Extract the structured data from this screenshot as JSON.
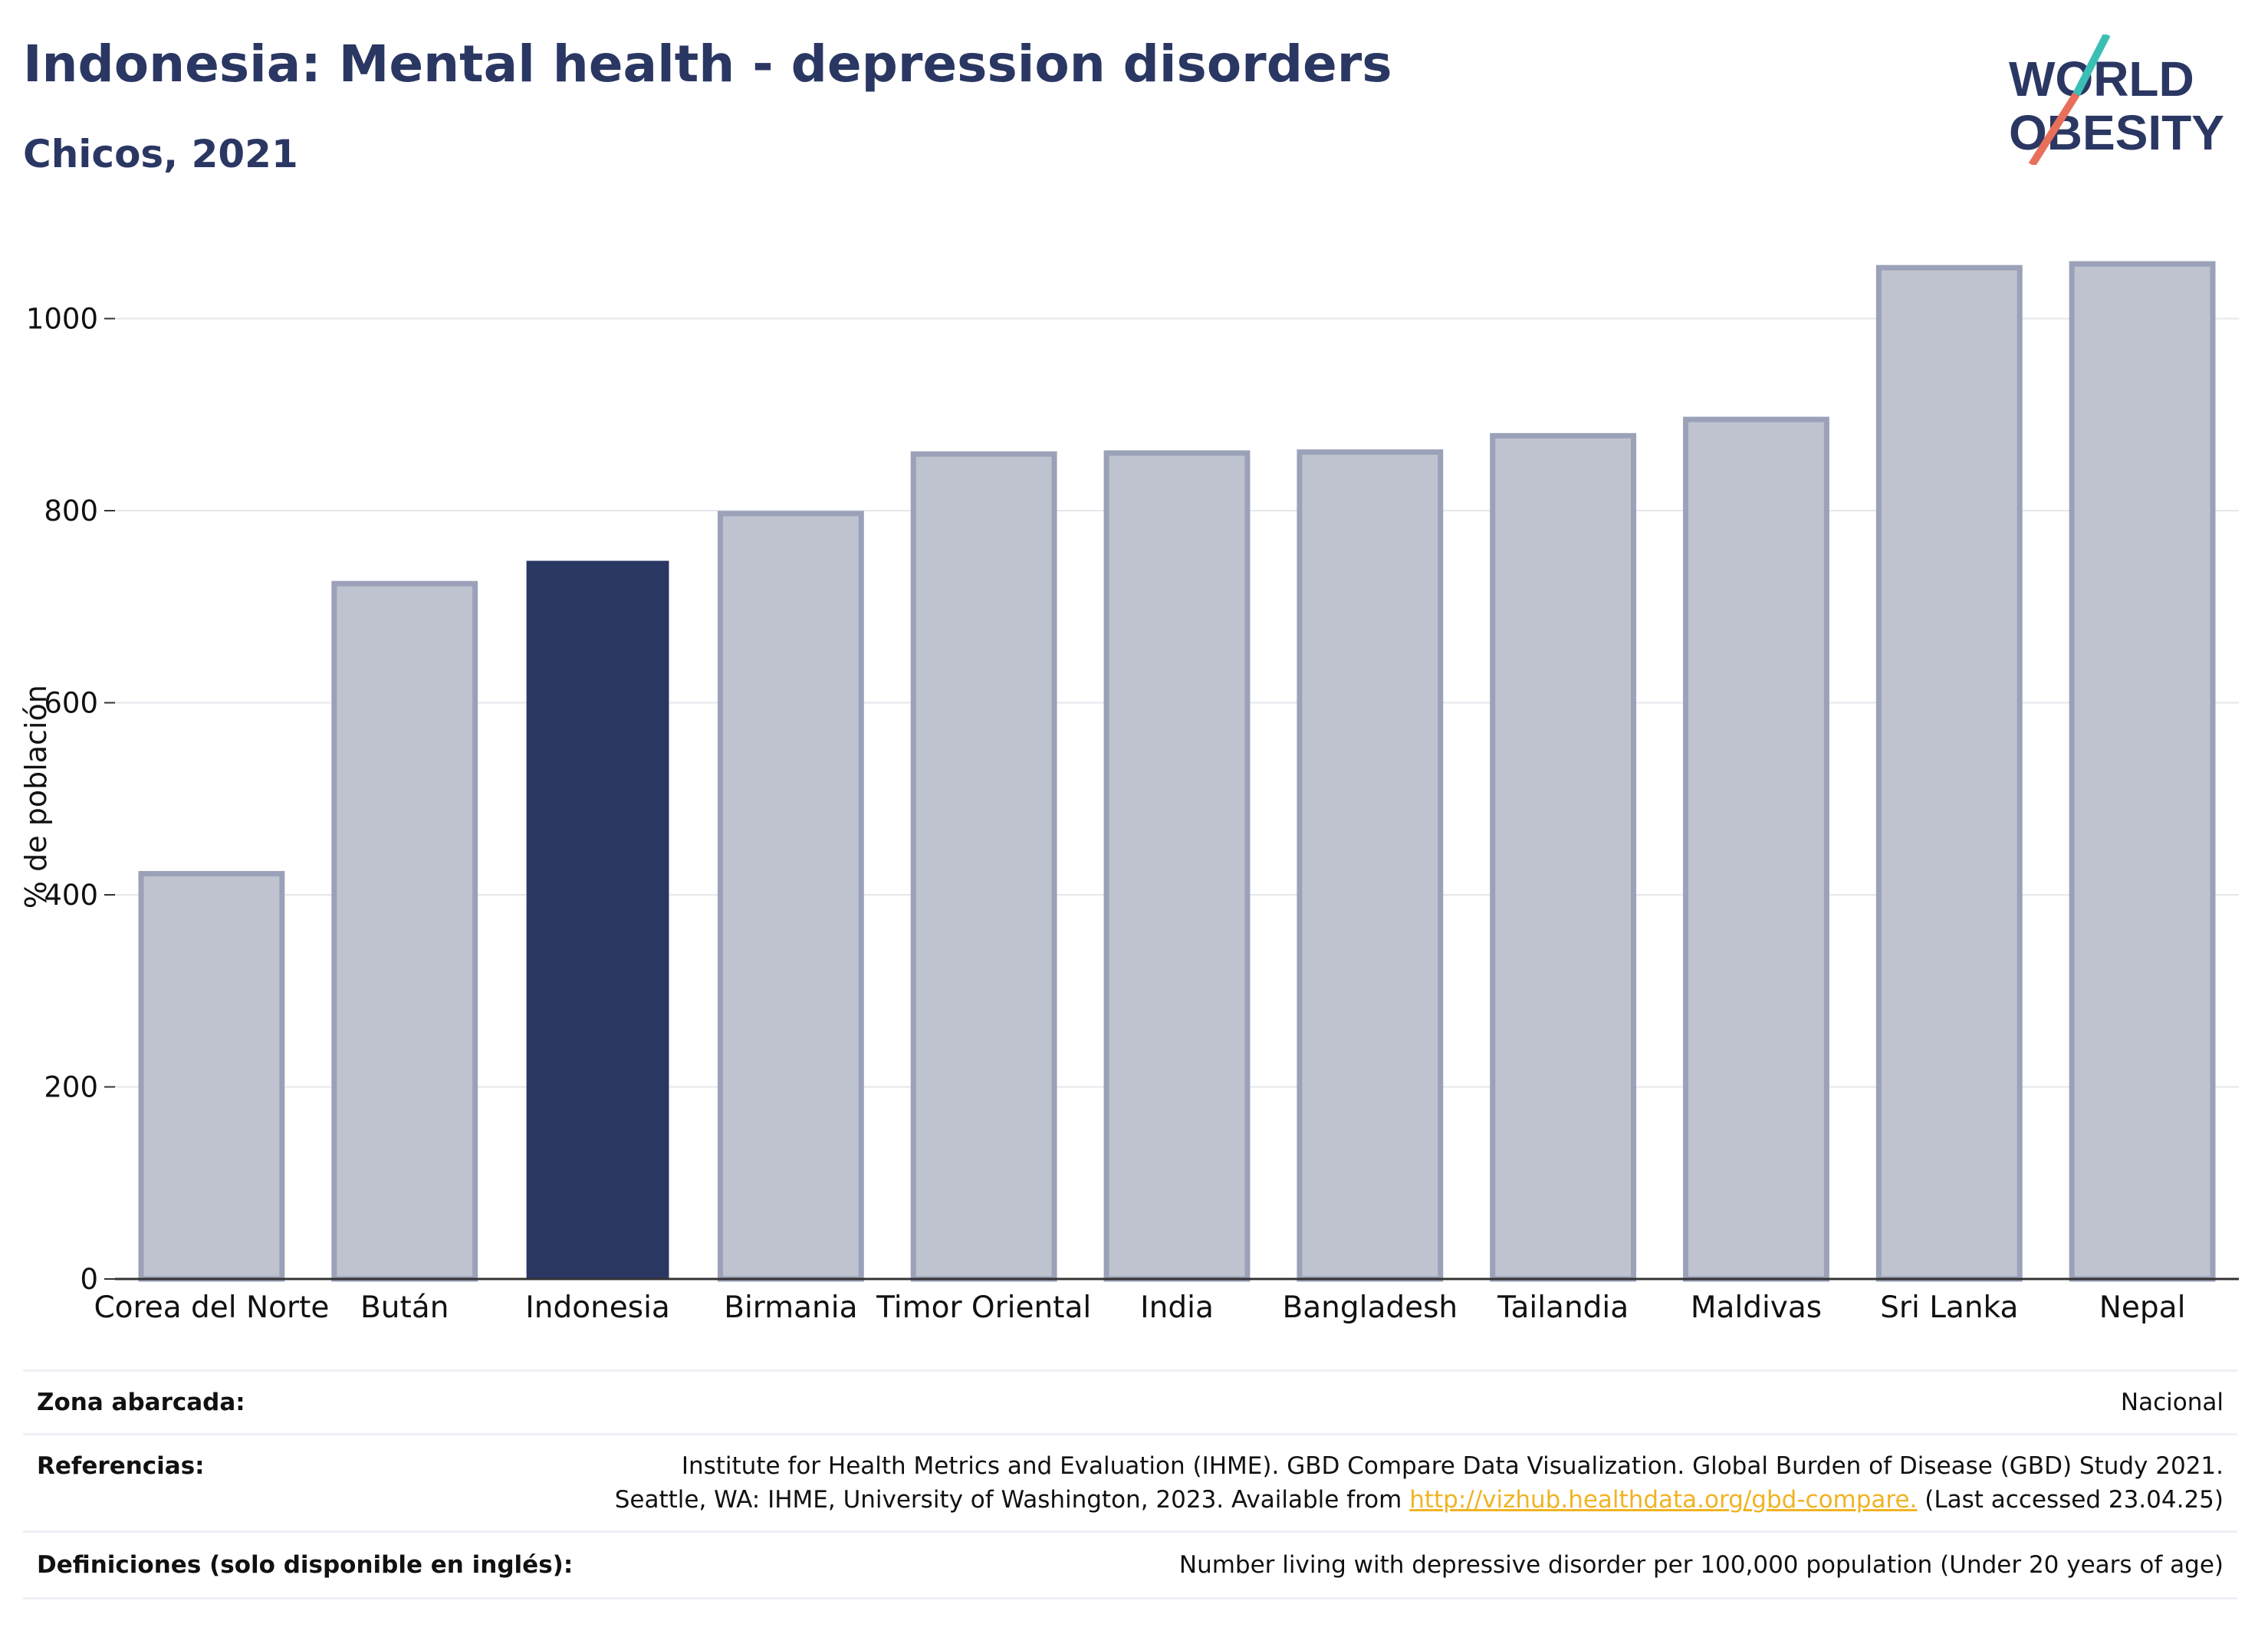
{
  "header": {
    "title": "Indonesia: Mental health - depression disorders",
    "subtitle": "Chicos, 2021"
  },
  "logo": {
    "line1": "WORLD",
    "line2": "OBESITY",
    "accent_teal": "#3bbfb5",
    "accent_coral": "#e8705a",
    "text_color": "#2b3763"
  },
  "colors": {
    "highlight": "#2b3763",
    "bar_fill": "#bfc3d0",
    "bar_stroke": "#9aa1b8",
    "grid": "#e6e7ec",
    "link": "#f0b323"
  },
  "chart_data": {
    "type": "bar",
    "categories": [
      "Corea del Norte",
      "Bután",
      "Indonesia",
      "Birmania",
      "Timor Oriental",
      "India",
      "Bangladesh",
      "Tailandia",
      "Maldivas",
      "Sri Lanka",
      "Nepal"
    ],
    "values": [
      422,
      724,
      747,
      797,
      859,
      860,
      861,
      878,
      895,
      1053,
      1057
    ],
    "highlight": "Indonesia",
    "ylabel": "% de población",
    "xlabel": "",
    "ylim": [
      0,
      1100
    ],
    "yticks": [
      0,
      200,
      400,
      600,
      800,
      1000
    ],
    "grid": true
  },
  "table": {
    "zona_label": "Zona abarcada:",
    "zona_value": "Nacional",
    "ref_label": "Referencias:",
    "ref_line1": "Institute for Health Metrics and Evaluation (IHME). GBD Compare Data Visualization. Global Burden of Disease (GBD) Study 2021.",
    "ref_line2_pre": "Seattle, WA: IHME, University of Washington, 2023. Available from ",
    "ref_link": "http://vizhub.healthdata.org/gbd-compare.",
    "ref_line2_post": " (Last accessed 23.04.25)",
    "def_label": "Definiciones (solo disponible en inglés):",
    "def_value": "Number living with depressive disorder per 100,000 population (Under 20 years of age)"
  }
}
